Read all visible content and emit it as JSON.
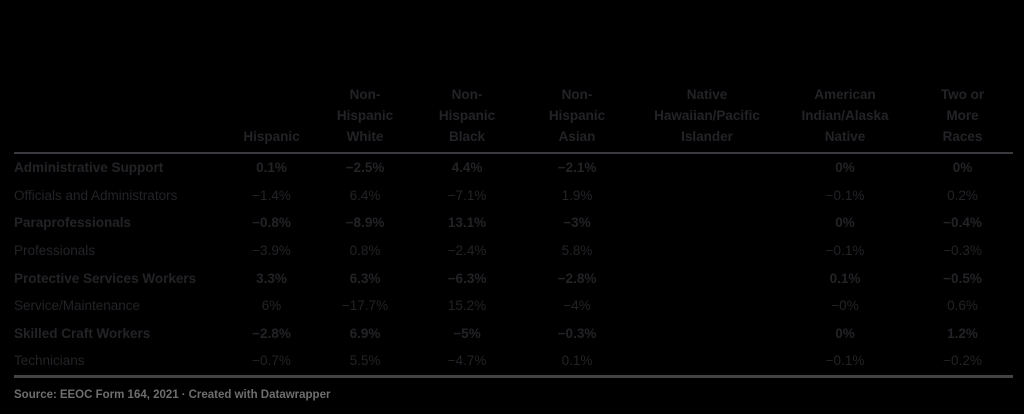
{
  "chart_data": {
    "type": "table",
    "title": "",
    "unit": "%",
    "columns": [
      "Hispanic",
      "Non-Hispanic White",
      "Non-Hispanic Black",
      "Non-Hispanic Asian",
      "Native Hawaiian/Pacific Islander",
      "American Indian/Alaska Native",
      "Two or More Races"
    ],
    "categories": [
      "Administrative Support",
      "Officials and Administrators",
      "Paraprofessionals",
      "Professionals",
      "Protective Services Workers",
      "Service/Maintenance",
      "Skilled Craft Workers",
      "Technicians"
    ],
    "series": [
      {
        "name": "Hispanic",
        "values": [
          0.1,
          -1.4,
          -0.8,
          -3.9,
          3.3,
          6,
          -2.8,
          -0.7
        ]
      },
      {
        "name": "Non-Hispanic White",
        "values": [
          -2.5,
          6.4,
          -8.9,
          0.8,
          6.3,
          -17.7,
          6.9,
          5.5
        ]
      },
      {
        "name": "Non-Hispanic Black",
        "values": [
          4.4,
          -7.1,
          13.1,
          -2.4,
          -6.3,
          15.2,
          -5,
          -4.7
        ]
      },
      {
        "name": "Non-Hispanic Asian",
        "values": [
          -2.1,
          1.9,
          -3,
          5.8,
          -2.8,
          -4,
          -0.3,
          0.1
        ]
      },
      {
        "name": "Native Hawaiian/Pacific Islander",
        "values": [
          null,
          null,
          null,
          null,
          null,
          null,
          null,
          null
        ]
      },
      {
        "name": "American Indian/Alaska Native",
        "values": [
          0,
          -0.1,
          0,
          -0.1,
          0.1,
          0,
          0,
          -0.1
        ]
      },
      {
        "name": "Two or More Races",
        "values": [
          0,
          0.2,
          -0.4,
          -0.3,
          -0.5,
          0.6,
          1.2,
          -0.2
        ]
      }
    ],
    "layout_hints": {
      "grid": false,
      "legend": "none",
      "header_rule": true,
      "bottom_rule": true
    }
  },
  "table": {
    "col_headers": [
      "Hispanic",
      "Non-\nHispanic\nWhite",
      "Non-\nHispanic\nBlack",
      "Non-\nHispanic\nAsian",
      "Native\nHawaiian/Pacific\nIslander",
      "American\nIndian/Alaska\nNative",
      "Two or\nMore\nRaces"
    ],
    "rows": [
      {
        "label": "Administrative Support",
        "values": [
          "0.1%",
          "−2.5%",
          "4.4%",
          "−2.1%",
          "",
          "0%",
          "0%"
        ]
      },
      {
        "label": "Officials and Administrators",
        "values": [
          "−1.4%",
          "6.4%",
          "−7.1%",
          "1.9%",
          "",
          "−0.1%",
          "0.2%"
        ]
      },
      {
        "label": "Paraprofessionals",
        "values": [
          "−0.8%",
          "−8.9%",
          "13.1%",
          "−3%",
          "",
          "0%",
          "−0.4%"
        ]
      },
      {
        "label": "Professionals",
        "values": [
          "−3.9%",
          "0.8%",
          "−2.4%",
          "5.8%",
          "",
          "−0.1%",
          "−0.3%"
        ]
      },
      {
        "label": "Protective Services Workers",
        "values": [
          "3.3%",
          "6.3%",
          "−6.3%",
          "−2.8%",
          "",
          "0.1%",
          "−0.5%"
        ]
      },
      {
        "label": "Service/Maintenance",
        "values": [
          "6%",
          "−17.7%",
          "15.2%",
          "−4%",
          "",
          "−0%",
          "0.6%"
        ]
      },
      {
        "label": "Skilled Craft Workers",
        "values": [
          "−2.8%",
          "6.9%",
          "−5%",
          "−0.3%",
          "",
          "0%",
          "1.2%"
        ]
      },
      {
        "label": "Technicians",
        "values": [
          "−0.7%",
          "5.5%",
          "−4.7%",
          "0.1%",
          "",
          "−0.1%",
          "−0.2%"
        ]
      }
    ]
  },
  "footer": {
    "source_label": "Source:",
    "source_text": "EEOC Form 164, 2021",
    "separator": "·",
    "credit": "Created with Datawrapper"
  },
  "colors": {
    "background": "#000000",
    "text": "#232327",
    "header_rule": "#3a3a3e",
    "bottom_rule": "#434343",
    "footer_text": "#6e6e6e"
  }
}
